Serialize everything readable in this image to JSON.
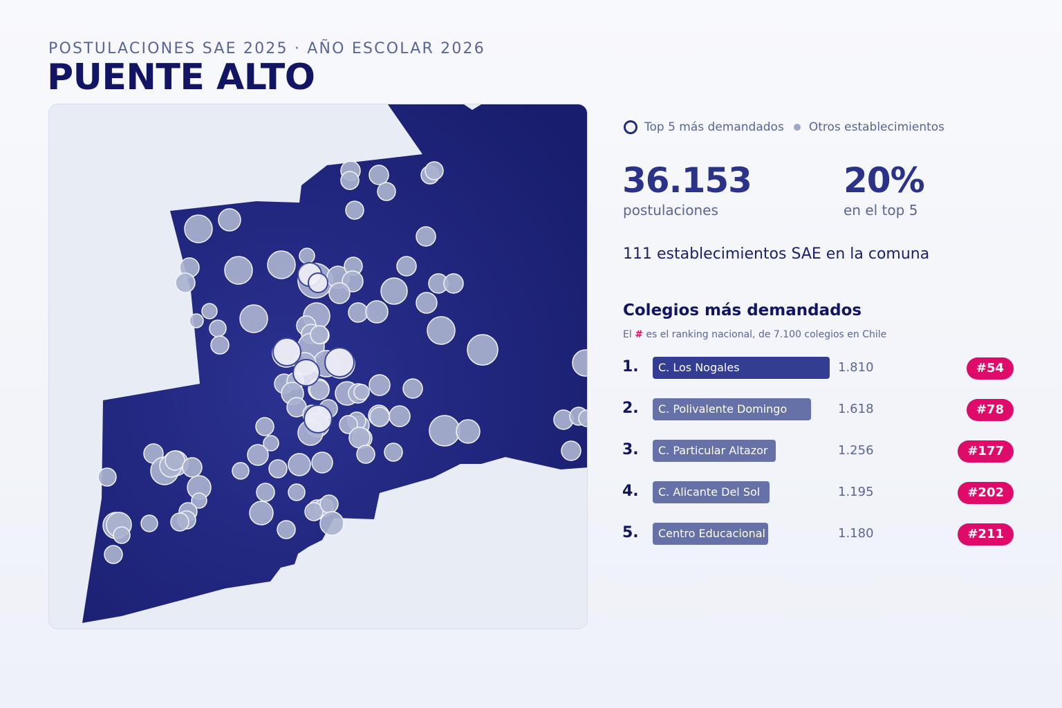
{
  "header": {
    "subtitle": "POSTULACIONES SAE 2025 · AÑO ESCOLAR 2026",
    "title": "PUENTE ALTO"
  },
  "legend": {
    "top5_label": "Top 5 más demandados",
    "others_label": "Otros establecimientos"
  },
  "stats": {
    "applications_value": "36.153",
    "applications_label": "postulaciones",
    "top5_share_value": "20%",
    "top5_share_label": "en el top 5",
    "schools_count_line": "111 establecimientos SAE en la comuna"
  },
  "ranking": {
    "title": "Colegios más demandados",
    "note_prefix": "El ",
    "note_hash": "#",
    "note_suffix": " es el ranking nacional, de 7.100 colegios en Chile",
    "max_value": 1810,
    "items": [
      {
        "index": "1.",
        "name": "C. Los Nogales",
        "value_label": "1.810",
        "value": 1810,
        "national_rank": "#54"
      },
      {
        "index": "2.",
        "name": "C. Polivalente Domingo",
        "value_label": "1.618",
        "value": 1618,
        "national_rank": "#78"
      },
      {
        "index": "3.",
        "name": "C. Particular Altazor",
        "value_label": "1.256",
        "value": 1256,
        "national_rank": "#177"
      },
      {
        "index": "4.",
        "name": "C. Alicante Del Sol",
        "value_label": "1.195",
        "value": 1195,
        "national_rank": "#202"
      },
      {
        "index": "5.",
        "name": "Centro Educacional San",
        "value_label": "1.180",
        "value": 1180,
        "national_rank": "#211"
      }
    ]
  },
  "colors": {
    "region_fill": "#1f2680",
    "school_fill": "#aab2cf",
    "top5_fill": "#eef0f8",
    "badge": "#de0b6b",
    "bar_first": "#333d92",
    "bar_other": "#6671a8"
  }
}
